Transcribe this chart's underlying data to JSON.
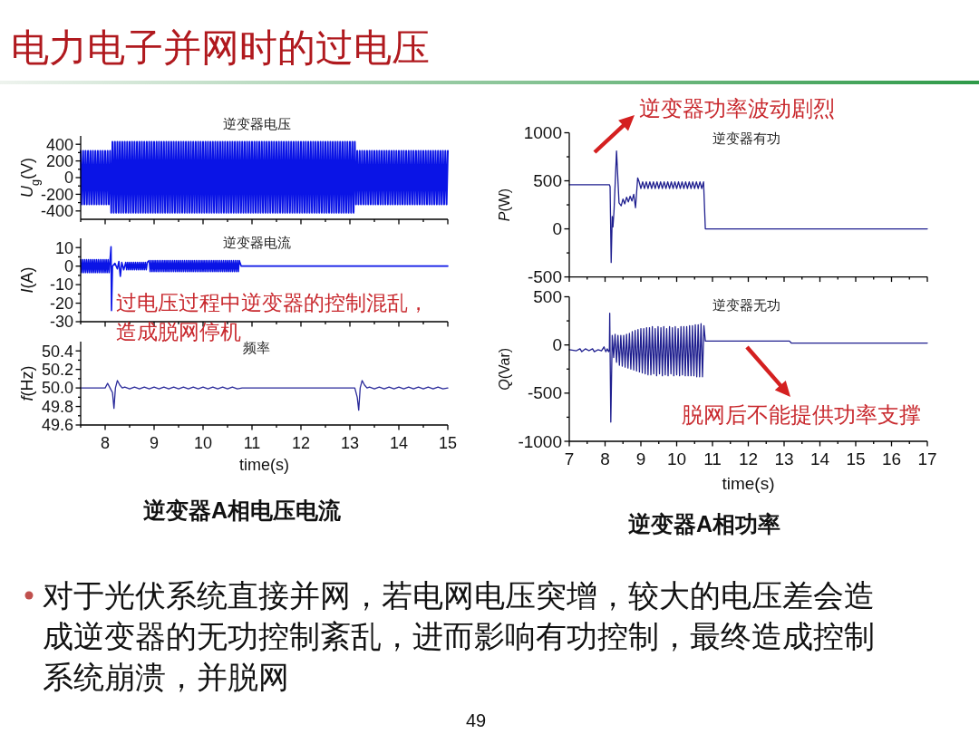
{
  "chart_data": [
    {
      "type": "line",
      "title": "逆变器电压",
      "ylabel": "*U*$_{g}$(V)",
      "xlim": [
        7.5,
        15
      ],
      "ylim": [
        -500,
        500
      ],
      "tick_labels": "y",
      "xticks": [
        {
          "value": 7.5,
          "label": null
        },
        8,
        {
          "value": 8.5,
          "label": null
        },
        9,
        {
          "value": 9.5,
          "label": null
        },
        10,
        {
          "value": 10.5,
          "label": null
        },
        11,
        {
          "value": 11.5,
          "label": null
        },
        12,
        {
          "value": 12.5,
          "label": null
        },
        13,
        {
          "value": 13.5,
          "label": null
        },
        14,
        {
          "value": 14.5,
          "label": null
        },
        15
      ],
      "yticks": [
        -400,
        {
          "value": -300,
          "label": null
        },
        -200,
        {
          "value": -100,
          "label": null
        },
        0,
        {
          "value": 100,
          "label": null
        },
        200,
        {
          "value": 300,
          "label": null
        },
        400
      ],
      "x": [
        7.5,
        7.525,
        7.55,
        7.575,
        7.6,
        7.625,
        7.65,
        7.675,
        7.7,
        7.725,
        7.75,
        7.775,
        7.8,
        7.825,
        7.85,
        7.875,
        7.9,
        7.925,
        7.95,
        7.975,
        8,
        8.025,
        8.05,
        8.075,
        8.1,
        8.125,
        8.15,
        8.175,
        8.2,
        8.225,
        8.25,
        8.275,
        8.3,
        8.325,
        8.35,
        8.375,
        8.4,
        8.425,
        8.45,
        8.475,
        8.5,
        8.525,
        8.55,
        8.575,
        8.6,
        8.625,
        8.65,
        8.675,
        8.7,
        8.725,
        8.75,
        8.775,
        8.8,
        8.825,
        8.85,
        8.875,
        8.9,
        8.925,
        8.95,
        8.975,
        9,
        9.025,
        9.05,
        9.075,
        9.1,
        9.125,
        9.15,
        9.175,
        9.2,
        9.225,
        9.25,
        9.275,
        9.3,
        9.325,
        9.35,
        9.375,
        9.4,
        9.425,
        9.45,
        9.475,
        9.5,
        9.525,
        9.55,
        9.575,
        9.6,
        9.625,
        9.65,
        9.675,
        9.7,
        9.725,
        9.75,
        9.775,
        9.8,
        9.825,
        9.85,
        9.875,
        9.9,
        9.925,
        9.95,
        9.975,
        10,
        10.025,
        10.05,
        10.075,
        10.1,
        10.125,
        10.15,
        10.175,
        10.2,
        10.225,
        10.25,
        10.275,
        10.3,
        10.325,
        10.35,
        10.375,
        10.4,
        10.425,
        10.45,
        10.475,
        10.5,
        10.525,
        10.55,
        10.575,
        10.6,
        10.625,
        10.65,
        10.675,
        10.7,
        10.725,
        10.75,
        10.775,
        10.8,
        10.825,
        10.85,
        10.875,
        10.9,
        10.925,
        10.95,
        10.975,
        11,
        11.025,
        11.05,
        11.075,
        11.1,
        11.125,
        11.15,
        11.175,
        11.2,
        11.225,
        11.25,
        11.275,
        11.3,
        11.325,
        11.35,
        11.375,
        11.4,
        11.425,
        11.45,
        11.475,
        11.5,
        11.525,
        11.55,
        11.575,
        11.6,
        11.625,
        11.65,
        11.675,
        11.7,
        11.725,
        11.75,
        11.775,
        11.8,
        11.825,
        11.85,
        11.875,
        11.9,
        11.925,
        11.95,
        11.975,
        12,
        12.025,
        12.05,
        12.075,
        12.1,
        12.125,
        12.15,
        12.175,
        12.2,
        12.225,
        12.25,
        12.275,
        12.3,
        12.325,
        12.35,
        12.375,
        12.4,
        12.425,
        12.45,
        12.475,
        12.5,
        12.525,
        12.55,
        12.575,
        12.6,
        12.625,
        12.65,
        12.675,
        12.7,
        12.725,
        12.75,
        12.775,
        12.8,
        12.825,
        12.85,
        12.875,
        12.9,
        12.925,
        12.95,
        12.975,
        13,
        13.025,
        13.05,
        13.075,
        13.1,
        13.125,
        13.15,
        13.175,
        13.2,
        13.225,
        13.25,
        13.275,
        13.3,
        13.325,
        13.35,
        13.375,
        13.4,
        13.425,
        13.45,
        13.475,
        13.5,
        13.525,
        13.55,
        13.575,
        13.6,
        13.625,
        13.65,
        13.675,
        13.7,
        13.725,
        13.75,
        13.775,
        13.8,
        13.825,
        13.85,
        13.875,
        13.9,
        13.925,
        13.95,
        13.975,
        14,
        14.025,
        14.05,
        14.075,
        14.1,
        14.125,
        14.15,
        14.175,
        14.2,
        14.225,
        14.25,
        14.275,
        14.3,
        14.325,
        14.35,
        14.375,
        14.4,
        14.425,
        14.45,
        14.475,
        14.5,
        14.525,
        14.55,
        14.575,
        14.6,
        14.625,
        14.65,
        14.675,
        14.7,
        14.725,
        14.75,
        14.775,
        14.8,
        14.825,
        14.85,
        14.875,
        14.9,
        14.925,
        14.95,
        14.975,
        15
      ],
      "series": [
        {
          "color": "#0a14e6",
          "values": [
            320,
            -320,
            320,
            -320,
            320,
            -320,
            320,
            -320,
            320,
            -320,
            320,
            -320,
            320,
            -320,
            320,
            -320,
            320,
            -320,
            320,
            -320,
            320,
            -320,
            320,
            -320,
            320,
            -420,
            430,
            -420,
            430,
            -420,
            430,
            -420,
            430,
            -420,
            430,
            -420,
            430,
            -420,
            430,
            -420,
            430,
            -420,
            430,
            -420,
            430,
            -420,
            430,
            -420,
            430,
            -420,
            430,
            -420,
            430,
            -420,
            430,
            -420,
            430,
            -420,
            430,
            -420,
            430,
            -420,
            430,
            -420,
            430,
            -420,
            430,
            -420,
            430,
            -420,
            430,
            -420,
            430,
            -420,
            430,
            -420,
            430,
            -420,
            430,
            -420,
            430,
            -420,
            430,
            -420,
            430,
            -420,
            430,
            -420,
            430,
            -420,
            430,
            -420,
            430,
            -420,
            430,
            -420,
            430,
            -420,
            430,
            -420,
            430,
            -420,
            430,
            -420,
            430,
            -420,
            430,
            -420,
            430,
            -420,
            430,
            -420,
            430,
            -420,
            430,
            -420,
            430,
            -420,
            430,
            -420,
            430,
            -420,
            430,
            -420,
            430,
            -420,
            430,
            -420,
            430,
            -420,
            430,
            -420,
            430,
            -420,
            430,
            -420,
            430,
            -420,
            430,
            -420,
            430,
            -420,
            430,
            -420,
            430,
            -420,
            430,
            -420,
            430,
            -420,
            430,
            -420,
            430,
            -420,
            430,
            -420,
            430,
            -420,
            430,
            -420,
            430,
            -420,
            430,
            -420,
            430,
            -420,
            430,
            -420,
            430,
            -420,
            430,
            -420,
            430,
            -420,
            430,
            -420,
            430,
            -420,
            430,
            -420,
            430,
            -420,
            430,
            -420,
            430,
            -420,
            430,
            -420,
            430,
            -420,
            430,
            -420,
            430,
            -420,
            430,
            -420,
            430,
            -420,
            430,
            -420,
            430,
            -420,
            430,
            -420,
            430,
            -420,
            430,
            -420,
            430,
            -420,
            430,
            -420,
            430,
            -420,
            430,
            -420,
            430,
            -420,
            430,
            -420,
            430,
            -420,
            430,
            -420,
            430,
            -320,
            320,
            -320,
            320,
            -320,
            320,
            -320,
            320,
            -320,
            320,
            -320,
            320,
            -320,
            320,
            -320,
            320,
            -320,
            320,
            -320,
            320,
            -320,
            320,
            -320,
            320,
            -320,
            320,
            -320,
            320,
            -320,
            320,
            -320,
            320,
            -320,
            320,
            -320,
            320,
            -320,
            320,
            -320,
            320,
            -320,
            320,
            -320,
            320,
            -320,
            320,
            -320,
            320,
            -320,
            320,
            -320,
            320,
            -320,
            320,
            -320,
            320,
            -320,
            320,
            -320,
            320,
            -320,
            320,
            -320,
            320,
            -320,
            320,
            -320,
            320,
            -320,
            320,
            -320,
            320,
            -320,
            320,
            -320,
            320
          ]
        }
      ]
    },
    {
      "type": "line",
      "title": "逆变器电流",
      "ylabel": "*I*(A)",
      "xlim": [
        7.5,
        15
      ],
      "ylim": [
        -30,
        15
      ],
      "tick_labels": "y",
      "xticks": [
        {
          "value": 7.5,
          "label": null
        },
        8,
        {
          "value": 8.5,
          "label": null
        },
        9,
        {
          "value": 9.5,
          "label": null
        },
        10,
        {
          "value": 10.5,
          "label": null
        },
        11,
        {
          "value": 11.5,
          "label": null
        },
        12,
        {
          "value": 12.5,
          "label": null
        },
        13,
        {
          "value": 13.5,
          "label": null
        },
        14,
        {
          "value": 14.5,
          "label": null
        },
        15
      ],
      "yticks": [
        -30,
        {
          "value": -25,
          "label": null
        },
        -20,
        {
          "value": -15,
          "label": null
        },
        -10,
        {
          "value": -5,
          "label": null
        },
        0,
        {
          "value": 5,
          "label": null
        },
        10
      ],
      "x": [
        7.5,
        7.52,
        7.54,
        7.56,
        7.58,
        7.6,
        7.62,
        7.64,
        7.66,
        7.68,
        7.7,
        7.72,
        7.74,
        7.76,
        7.78,
        7.8,
        7.82,
        7.84,
        7.86,
        7.88,
        7.9,
        7.92,
        7.94,
        7.96,
        7.98,
        8,
        8.02,
        8.04,
        8.06,
        8.08,
        8.1,
        8.12,
        8.13,
        8.15,
        8.2,
        8.25,
        8.28,
        8.31,
        8.34,
        8.38,
        8.42,
        8.44,
        8.46,
        8.48,
        8.5,
        8.52,
        8.54,
        8.56,
        8.58,
        8.6,
        8.62,
        8.64,
        8.66,
        8.68,
        8.7,
        8.72,
        8.74,
        8.76,
        8.78,
        8.8,
        8.82,
        8.84,
        8.86,
        8.9,
        8.92,
        8.94,
        8.96,
        8.98,
        9,
        9.02,
        9.04,
        9.06,
        9.08,
        9.1,
        9.12,
        9.14,
        9.16,
        9.18,
        9.2,
        9.22,
        9.24,
        9.26,
        9.28,
        9.3,
        9.32,
        9.34,
        9.36,
        9.38,
        9.4,
        9.42,
        9.44,
        9.46,
        9.48,
        9.5,
        9.52,
        9.54,
        9.56,
        9.58,
        9.6,
        9.62,
        9.64,
        9.66,
        9.68,
        9.7,
        9.72,
        9.74,
        9.76,
        9.78,
        9.8,
        9.82,
        9.84,
        9.86,
        9.88,
        9.9,
        9.92,
        9.94,
        9.96,
        9.98,
        10,
        10.02,
        10.04,
        10.06,
        10.08,
        10.1,
        10.12,
        10.14,
        10.16,
        10.18,
        10.2,
        10.22,
        10.24,
        10.26,
        10.28,
        10.3,
        10.32,
        10.34,
        10.36,
        10.38,
        10.4,
        10.42,
        10.44,
        10.46,
        10.48,
        10.5,
        10.52,
        10.54,
        10.56,
        10.58,
        10.6,
        10.62,
        10.64,
        10.66,
        10.68,
        10.7,
        10.72,
        10.74,
        10.78,
        15
      ],
      "series": [
        {
          "color": "#0a14e6",
          "values": [
            3.5,
            -3.5,
            3.5,
            -3.5,
            3.5,
            -3.5,
            3.5,
            -3.5,
            3.5,
            -3.5,
            3.5,
            -3.5,
            3.5,
            -3.5,
            3.5,
            -3.5,
            3.5,
            -3.5,
            3.5,
            -3.5,
            3.5,
            -3.5,
            3.5,
            -3.5,
            3.5,
            -3.5,
            3.5,
            -3.5,
            3.5,
            -3.5,
            3.5,
            10.5,
            -24,
            0,
            1.5,
            -1.5,
            2.5,
            -5.5,
            2,
            -2,
            2,
            -2,
            2,
            -2,
            2,
            -2,
            2,
            -2,
            2,
            -2,
            2,
            -2,
            2,
            -2,
            2,
            -2,
            2,
            -2,
            2,
            -2,
            2,
            -2,
            2,
            3,
            -3,
            3,
            -3,
            3,
            -3,
            3,
            -3,
            3,
            -3,
            3,
            -3,
            3,
            -3,
            3,
            -3,
            3,
            -3,
            3,
            -3,
            3,
            -3,
            3,
            -3,
            3,
            -3,
            3,
            -3,
            3,
            -3,
            3,
            -3,
            3,
            -3,
            3,
            -3,
            3,
            -3,
            3,
            -3,
            3,
            -3,
            3,
            -3,
            3,
            -3,
            3,
            -3,
            3,
            -3,
            3,
            -3,
            3,
            -3,
            3,
            -3,
            3,
            -3,
            3,
            -3,
            3,
            -3,
            3,
            -3,
            3,
            -3,
            3,
            -3,
            3,
            -3,
            3,
            -3,
            3,
            -3,
            3,
            -3,
            3,
            -3,
            3,
            -3,
            3,
            -3,
            3,
            -3,
            3,
            -3,
            3,
            -3,
            3,
            -3,
            3,
            -3,
            3,
            0,
            0
          ]
        }
      ],
      "annotations": [
        "过电压过程中逆变器的控制混乱，造成脱网停机"
      ]
    },
    {
      "type": "line",
      "title": "频率",
      "xlabel": "time(s)",
      "ylabel": "*f*(Hz)",
      "xlim": [
        7.5,
        15
      ],
      "ylim": [
        49.6,
        50.5
      ],
      "xticks": [
        {
          "value": 7.5,
          "label": null
        },
        8,
        {
          "value": 8.5,
          "label": null
        },
        9,
        {
          "value": 9.5,
          "label": null
        },
        10,
        {
          "value": 10.5,
          "label": null
        },
        11,
        {
          "value": 11.5,
          "label": null
        },
        12,
        {
          "value": 12.5,
          "label": null
        },
        13,
        {
          "value": 13.5,
          "label": null
        },
        14,
        {
          "value": 14.5,
          "label": null
        },
        15
      ],
      "yticks": [
        49.6,
        {
          "value": 49.7,
          "label": null
        },
        49.8,
        {
          "value": 49.9,
          "label": null
        },
        {
          "value": 50,
          "label": "50.0"
        },
        {
          "value": 50.1,
          "label": null
        },
        50.2,
        {
          "value": 50.3,
          "label": null
        },
        50.4
      ],
      "x": [
        7.5,
        8,
        8.05,
        8.1,
        8.15,
        8.18,
        8.21,
        8.25,
        8.3,
        8.35,
        8.4,
        8.5,
        8.6,
        8.7,
        8.8,
        8.9,
        9,
        9.1,
        9.2,
        9.3,
        9.4,
        9.5,
        9.6,
        9.7,
        9.8,
        9.9,
        10,
        10.1,
        10.2,
        10.3,
        10.4,
        10.5,
        10.6,
        10.7,
        10.8,
        13.1,
        13.15,
        13.18,
        13.21,
        13.25,
        13.3,
        13.35,
        13.4,
        13.5,
        13.6,
        13.7,
        13.8,
        13.9,
        14,
        14.1,
        14.2,
        14.3,
        14.4,
        14.5,
        14.6,
        14.7,
        14.8,
        14.9,
        15
      ],
      "series": [
        {
          "color": "#2a2a9a",
          "values": [
            50,
            50,
            50.05,
            50,
            49.95,
            49.78,
            50,
            50.08,
            50.03,
            50,
            50.01,
            49.99,
            50.01,
            49.99,
            50.01,
            49.99,
            50.01,
            49.99,
            50.01,
            49.99,
            50.01,
            49.99,
            50.01,
            49.99,
            50.01,
            49.99,
            50.01,
            49.99,
            50.01,
            49.99,
            50.01,
            49.99,
            50.01,
            49.99,
            50,
            50,
            49.9,
            49.76,
            50,
            50.08,
            50.03,
            50,
            50.01,
            49.99,
            50.01,
            49.99,
            50.01,
            49.99,
            50.01,
            49.99,
            50.01,
            49.99,
            50.01,
            49.99,
            50.01,
            49.99,
            50.01,
            49.99,
            50
          ]
        }
      ],
      "annotations": [
        "逆变器A相电压电流"
      ]
    },
    {
      "type": "line",
      "title": "逆变器有功",
      "ylabel": "*P*(W)",
      "xlim": [
        7,
        17
      ],
      "ylim": [
        -500,
        1000
      ],
      "tick_labels": "y",
      "xticks": [
        7,
        {
          "value": 7.5,
          "label": null
        },
        8,
        {
          "value": 8.5,
          "label": null
        },
        9,
        {
          "value": 9.5,
          "label": null
        },
        10,
        {
          "value": 10.5,
          "label": null
        },
        11,
        {
          "value": 11.5,
          "label": null
        },
        12,
        {
          "value": 12.5,
          "label": null
        },
        13,
        {
          "value": 13.5,
          "label": null
        },
        14,
        {
          "value": 14.5,
          "label": null
        },
        15,
        {
          "value": 15.5,
          "label": null
        },
        16,
        {
          "value": 16.5,
          "label": null
        },
        17
      ],
      "yticks": [
        -500,
        {
          "value": -250,
          "label": null
        },
        0,
        {
          "value": 250,
          "label": null
        },
        500,
        {
          "value": 750,
          "label": null
        },
        1000
      ],
      "x": [
        7,
        8.12,
        8.14,
        8.17,
        8.2,
        8.22,
        8.25,
        8.32,
        8.39,
        8.45,
        8.5,
        8.55,
        8.6,
        8.65,
        8.7,
        8.75,
        8.8,
        8.85,
        8.91,
        8.95,
        9,
        9.05,
        9.1,
        9.15,
        9.2,
        9.25,
        9.3,
        9.35,
        9.4,
        9.45,
        9.5,
        9.55,
        9.6,
        9.65,
        9.7,
        9.75,
        9.8,
        9.85,
        9.9,
        9.95,
        10,
        10.05,
        10.1,
        10.15,
        10.2,
        10.25,
        10.3,
        10.35,
        10.4,
        10.45,
        10.5,
        10.55,
        10.6,
        10.65,
        10.7,
        10.75,
        10.8,
        17
      ],
      "series": [
        {
          "color": "#1f1f8f",
          "values": [
            460,
            460,
            440,
            -350,
            130,
            20,
            190,
            810,
            270,
            240,
            310,
            260,
            330,
            280,
            340,
            290,
            360,
            220,
            530,
            490,
            420,
            490,
            420,
            490,
            420,
            490,
            420,
            490,
            420,
            490,
            420,
            490,
            420,
            490,
            420,
            490,
            420,
            490,
            420,
            490,
            420,
            490,
            420,
            490,
            420,
            490,
            420,
            490,
            420,
            490,
            420,
            490,
            420,
            490,
            420,
            490,
            0,
            0
          ]
        }
      ],
      "annotations": [
        "逆变器功率波动剧烈"
      ]
    },
    {
      "type": "line",
      "title": "逆变器无功",
      "xlabel": "time(s)",
      "ylabel": "*Q*(Var)",
      "xlim": [
        7,
        17
      ],
      "ylim": [
        -1000,
        500
      ],
      "xticks": [
        7,
        {
          "value": 7.5,
          "label": null
        },
        8,
        {
          "value": 8.5,
          "label": null
        },
        9,
        {
          "value": 9.5,
          "label": null
        },
        10,
        {
          "value": 10.5,
          "label": null
        },
        11,
        {
          "value": 11.5,
          "label": null
        },
        12,
        {
          "value": 12.5,
          "label": null
        },
        13,
        {
          "value": 13.5,
          "label": null
        },
        14,
        {
          "value": 14.5,
          "label": null
        },
        15,
        {
          "value": 15.5,
          "label": null
        },
        16,
        {
          "value": 16.5,
          "label": null
        },
        17
      ],
      "yticks": [
        -1000,
        {
          "value": -750,
          "label": null
        },
        -500,
        {
          "value": -250,
          "label": null
        },
        0,
        {
          "value": 250,
          "label": null
        },
        500
      ],
      "x": [
        7,
        7.2,
        7.3,
        7.35,
        7.45,
        7.55,
        7.65,
        7.7,
        7.8,
        7.9,
        7.97,
        8.02,
        8.06,
        8.1,
        8.12,
        8.13,
        8.16,
        8.2,
        8.24,
        8.28,
        8.32,
        8.36,
        8.4,
        8.44,
        8.48,
        8.52,
        8.56,
        8.6,
        8.64,
        8.68,
        8.72,
        8.76,
        8.8,
        8.84,
        8.88,
        8.92,
        8.96,
        9,
        9.04,
        9.08,
        9.12,
        9.16,
        9.2,
        9.24,
        9.28,
        9.32,
        9.36,
        9.4,
        9.44,
        9.48,
        9.52,
        9.56,
        9.6,
        9.64,
        9.68,
        9.72,
        9.76,
        9.8,
        9.84,
        9.88,
        9.92,
        9.96,
        10,
        10.04,
        10.08,
        10.12,
        10.16,
        10.2,
        10.24,
        10.28,
        10.32,
        10.36,
        10.4,
        10.44,
        10.48,
        10.52,
        10.56,
        10.6,
        10.64,
        10.68,
        10.72,
        10.76,
        10.8,
        12,
        13.15,
        13.2,
        17
      ],
      "series": [
        {
          "color": "#1f1f8f",
          "values": [
            -50,
            -60,
            -40,
            -70,
            -40,
            -60,
            -40,
            -70,
            -50,
            -60,
            -20,
            -70,
            -40,
            -70,
            -50,
            330,
            -800,
            100,
            -130,
            110,
            -180,
            100,
            -210,
            100,
            -220,
            100,
            -230,
            110,
            -240,
            120,
            -250,
            140,
            -260,
            150,
            -270,
            160,
            -280,
            170,
            -290,
            170,
            -300,
            180,
            -310,
            180,
            -310,
            190,
            -300,
            170,
            -320,
            190,
            -300,
            180,
            -320,
            190,
            -310,
            170,
            -320,
            190,
            -300,
            180,
            -320,
            190,
            -310,
            170,
            -320,
            190,
            -310,
            190,
            -320,
            190,
            -320,
            200,
            -320,
            200,
            -320,
            210,
            -330,
            210,
            -330,
            220,
            -330,
            200,
            40,
            40,
            40,
            20,
            20
          ]
        }
      ],
      "annotations": [
        "脱网后不能提供功率支撑",
        "逆变器A相功率"
      ]
    },
    {
      "type": "other",
      "title": "电力电子并网时的过电压",
      "annotations": [
        "对于光伏系统直接并网，若电网电压突增，较大的电压差会造成逆变器的无功控制紊乱，进而影响有功控制，最终造成控制系统崩溃，并脱网",
        "49"
      ]
    }
  ]
}
